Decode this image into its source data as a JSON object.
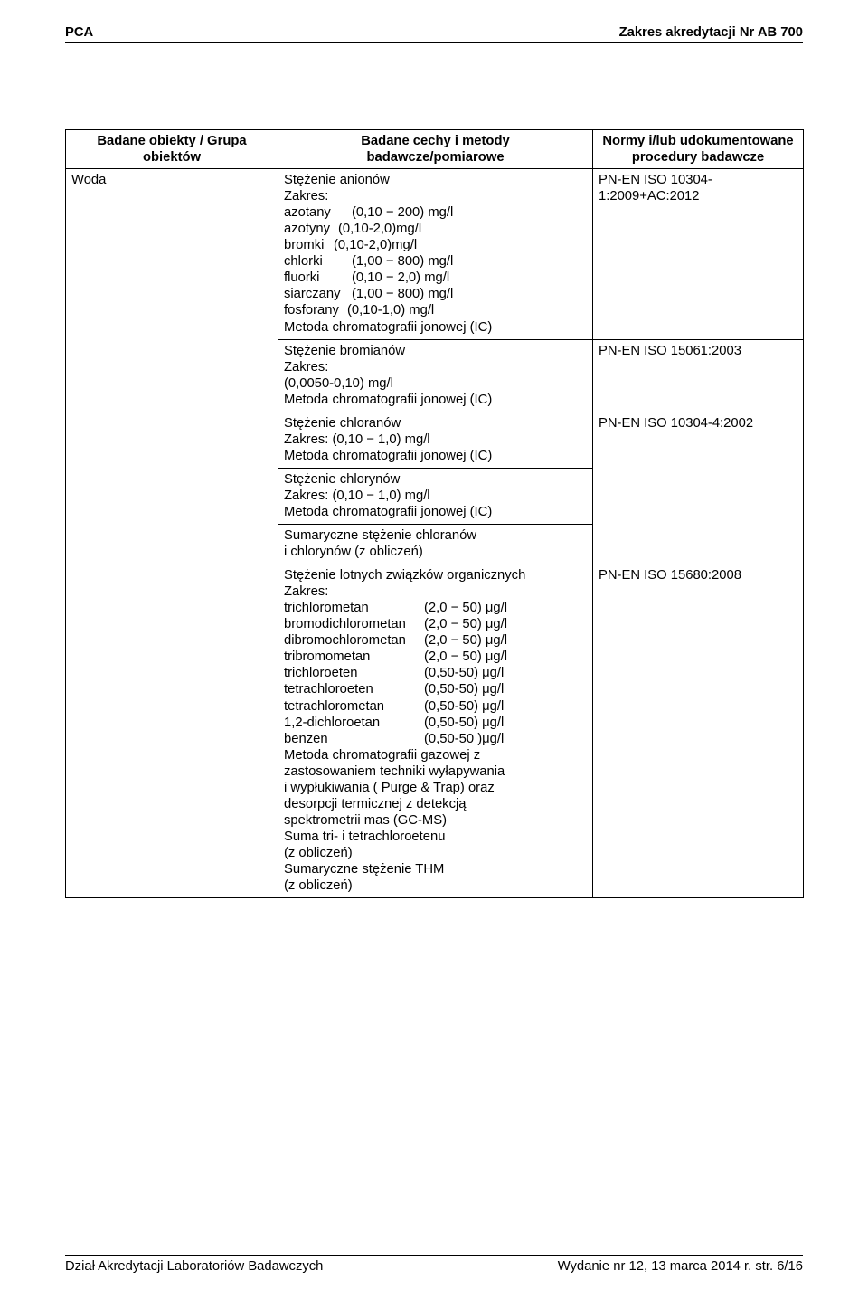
{
  "header": {
    "left": "PCA",
    "right": "Zakres akredytacji Nr AB 700"
  },
  "table": {
    "head": {
      "col1": "Badane obiekty / Grupa obiektów",
      "col2a": "Badane cechy i metody",
      "col2b": "badawcze/pomiarowe",
      "col3a": "Normy i/lub udokumentowane",
      "col3b": "procedury badawcze"
    },
    "col1_value": "Woda",
    "block1": {
      "l1": "Stężenie anionów",
      "l2": "Zakres:",
      "l3a": "azotany",
      "l3b": "(0,10 − 200) mg/l",
      "l4a": "azotyny",
      "l4b": "(0,10-2,0)mg/l",
      "l5a": "bromki",
      "l5b": "(0,10-2,0)mg/l",
      "l6a": "chlorki",
      "l6b": "(1,00 − 800) mg/l",
      "l7a": "fluorki",
      "l7b": "(0,10 − 2,0) mg/l",
      "l8a": "siarczany",
      "l8b": "(1,00 − 800) mg/l",
      "l9a": "fosforany",
      "l9b": "(0,10-1,0) mg/l",
      "l10": "Metoda chromatografii jonowej (IC)"
    },
    "block2": {
      "l1": "Stężenie bromianów",
      "l2": "Zakres:",
      "l3": "(0,0050-0,10) mg/l",
      "l4": "Metoda chromatografii jonowej (IC)"
    },
    "block3": {
      "l1": "Stężenie chloranów",
      "l2": "Zakres: (0,10 − 1,0) mg/l",
      "l3": "Metoda chromatografii jonowej (IC)"
    },
    "block4": {
      "l1": "Stężenie chlorynów",
      "l2": "Zakres: (0,10 − 1,0) mg/l",
      "l3": "Metoda chromatografii jonowej (IC)"
    },
    "block5": {
      "l1": "Sumaryczne stężenie chloranów",
      "l2": "i chlorynów (z obliczeń)"
    },
    "block6": {
      "l1": "Stężenie lotnych związków organicznych",
      "l2": "Zakres:",
      "c1a": "trichlorometan",
      "c1b": "(2,0 − 50) μg/l",
      "c2a": "bromodichlorometan",
      "c2b": "(2,0 − 50) μg/l",
      "c3a": "dibromochlorometan",
      "c3b": "(2,0 − 50) μg/l",
      "c4a": "tribromometan",
      "c4b": "(2,0 − 50) μg/l",
      "c5a": "trichloroeten",
      "c5b": "(0,50-50) μg/l",
      "c6a": "tetrachloroeten",
      "c6b": "(0,50-50) μg/l",
      "c7a": "tetrachlorometan",
      "c7b": "(0,50-50) μg/l",
      "c8a": "1,2-dichloroetan",
      "c8b": "(0,50-50) μg/l",
      "c9a": "benzen",
      "c9b": "(0,50-50 )μg/l",
      "m1": "Metoda chromatografii gazowej z",
      "m2": "zastosowaniem techniki wyłapywania",
      "m3": "i wypłukiwania ( Purge & Trap) oraz",
      "m4": "desorpcji termicznej z detekcją",
      "m5": "spektrometrii mas (GC-MS)",
      "s1": "Suma tri- i tetrachloroetenu",
      "s2": "(z obliczeń)",
      "s3": "Sumaryczne stężenie THM",
      "s4": " (z obliczeń)"
    },
    "norms": {
      "n1": "PN-EN ISO 10304-1:2009+AC:2012",
      "n2": "PN-EN ISO 15061:2003",
      "n3": "PN-EN ISO 10304-4:2002",
      "n4": "PN-EN ISO 15680:2008"
    },
    "heights": {
      "h1": "179px",
      "h2": "70px",
      "h3": "52px",
      "h4": "52px",
      "h5": "34px",
      "h6": "414px"
    }
  },
  "footer": {
    "left": "Dział Akredytacji Laboratoriów Badawczych",
    "right": "Wydanie nr 12, 13 marca 2014 r.   str. 6/16"
  }
}
